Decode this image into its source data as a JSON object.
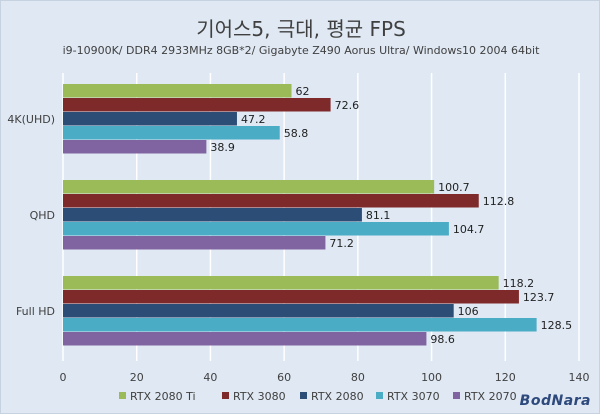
{
  "chart_data": {
    "type": "bar",
    "orientation": "horizontal",
    "title": "기어스5, 극대, 평균 FPS",
    "subtitle": "i9-10900K/ DDR4 2933MHz 8GB*2/ Gigabyte Z490 Aorus Ultra/ Windows10 2004 64bit",
    "categories": [
      "4K(UHD)",
      "QHD",
      "Full HD"
    ],
    "series": [
      {
        "name": "RTX 2080 Ti",
        "color": "#9bbb59",
        "values": [
          62,
          100.7,
          118.2
        ]
      },
      {
        "name": "RTX 3080",
        "color": "#7f2a2a",
        "values": [
          72.6,
          112.8,
          123.7
        ]
      },
      {
        "name": "RTX 2080",
        "color": "#2c4d75",
        "values": [
          47.2,
          81.1,
          106
        ]
      },
      {
        "name": "RTX 3070",
        "color": "#4bacc6",
        "values": [
          58.8,
          104.7,
          128.5
        ]
      },
      {
        "name": "RTX 2070",
        "color": "#8064a2",
        "values": [
          38.9,
          71.2,
          98.6
        ]
      }
    ],
    "xlim": [
      0,
      140
    ],
    "xticks": [
      0,
      20,
      40,
      60,
      80,
      100,
      120,
      140
    ],
    "grid": true,
    "legend_position": "bottom"
  },
  "watermark": "BodNara"
}
